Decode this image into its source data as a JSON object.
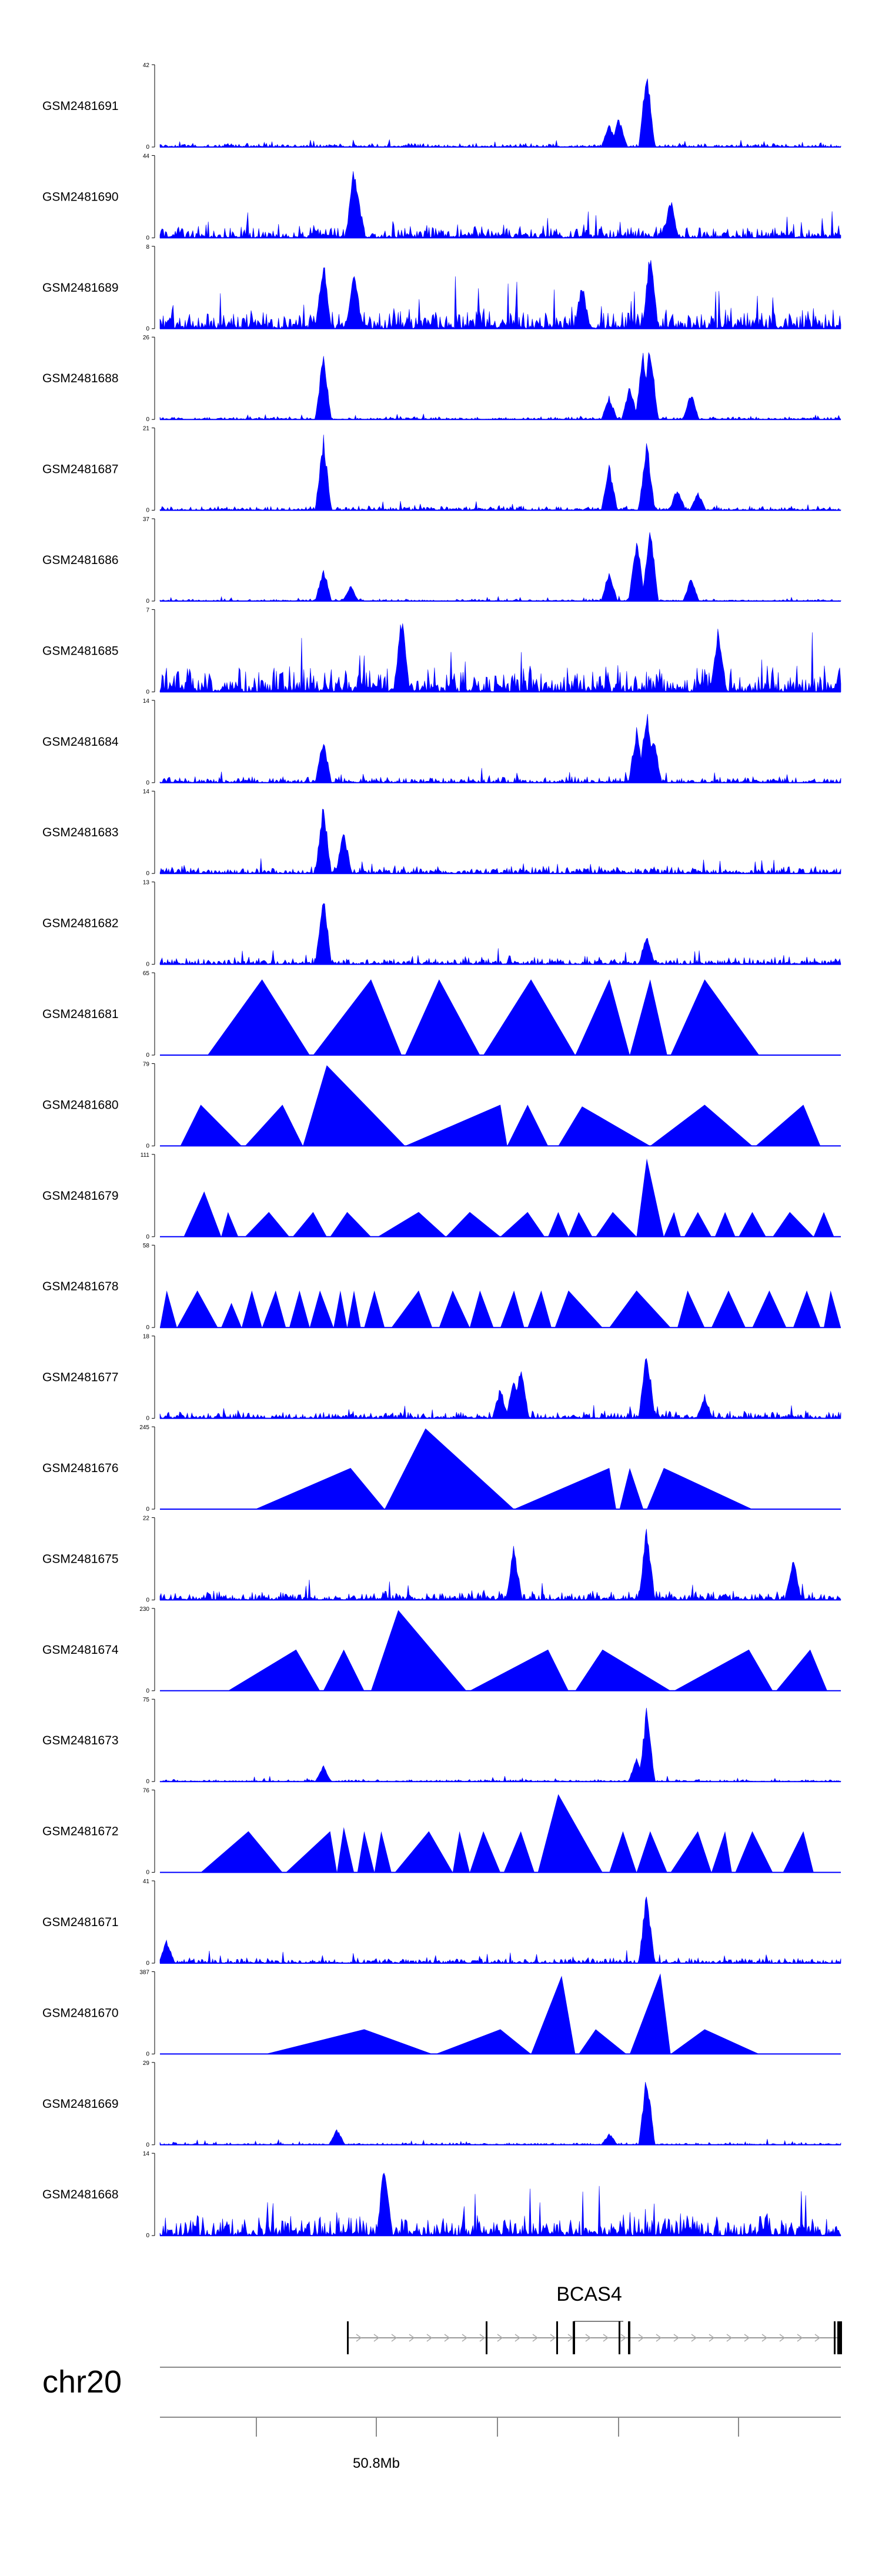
{
  "chart_data": {
    "type": "area",
    "title": "",
    "xlabel": "",
    "ylabel": "",
    "chromosome": "chr20",
    "ruler": {
      "labels": [
        "50.8Mb"
      ]
    },
    "gene": {
      "name": "BCAS4"
    },
    "tracks": [
      {
        "name": "GSM2481691",
        "ymax": 42,
        "ymin": 0,
        "kind": "dense",
        "noise": 0.05,
        "peaks": [
          [
            0.66,
            0.3
          ],
          [
            0.674,
            0.4
          ],
          [
            0.715,
            1.0
          ]
        ]
      },
      {
        "name": "GSM2481690",
        "ymax": 44,
        "ymin": 0,
        "kind": "dense",
        "noise": 0.18,
        "peaks": [
          [
            0.285,
            0.95
          ],
          [
            0.29,
            0.6
          ],
          [
            0.75,
            0.5
          ]
        ]
      },
      {
        "name": "GSM2481689",
        "ymax": 8,
        "ymin": 0,
        "kind": "dense",
        "noise": 0.28,
        "peaks": [
          [
            0.24,
            0.9
          ],
          [
            0.285,
            0.85
          ],
          [
            0.72,
            1.0
          ],
          [
            0.62,
            0.6
          ]
        ]
      },
      {
        "name": "GSM2481688",
        "ymax": 26,
        "ymin": 0,
        "kind": "dense",
        "noise": 0.04,
        "peaks": [
          [
            0.24,
            0.85
          ],
          [
            0.66,
            0.3
          ],
          [
            0.69,
            0.45
          ],
          [
            0.71,
            0.9
          ],
          [
            0.72,
            1.0
          ],
          [
            0.78,
            0.35
          ]
        ]
      },
      {
        "name": "GSM2481687",
        "ymax": 21,
        "ymin": 0,
        "kind": "dense",
        "noise": 0.06,
        "peaks": [
          [
            0.24,
            0.95
          ],
          [
            0.66,
            0.6
          ],
          [
            0.715,
            0.9
          ],
          [
            0.76,
            0.3
          ],
          [
            0.79,
            0.25
          ]
        ]
      },
      {
        "name": "GSM2481686",
        "ymax": 37,
        "ymin": 0,
        "kind": "dense",
        "noise": 0.03,
        "peaks": [
          [
            0.24,
            0.45
          ],
          [
            0.28,
            0.2
          ],
          [
            0.66,
            0.4
          ],
          [
            0.7,
            0.85
          ],
          [
            0.72,
            1.0
          ],
          [
            0.78,
            0.3
          ]
        ]
      },
      {
        "name": "GSM2481685",
        "ymax": 7,
        "ymin": 0,
        "kind": "dense",
        "noise": 0.35,
        "peaks": [
          [
            0.355,
            1.0
          ],
          [
            0.82,
            0.85
          ]
        ]
      },
      {
        "name": "GSM2481684",
        "ymax": 14,
        "ymin": 0,
        "kind": "dense",
        "noise": 0.08,
        "peaks": [
          [
            0.24,
            0.6
          ],
          [
            0.7,
            0.7
          ],
          [
            0.715,
            0.95
          ],
          [
            0.725,
            0.6
          ]
        ]
      },
      {
        "name": "GSM2481683",
        "ymax": 14,
        "ymin": 0,
        "kind": "dense",
        "noise": 0.1,
        "peaks": [
          [
            0.24,
            0.9
          ],
          [
            0.27,
            0.55
          ]
        ]
      },
      {
        "name": "GSM2481682",
        "ymax": 13,
        "ymin": 0,
        "kind": "dense",
        "noise": 0.1,
        "peaks": [
          [
            0.24,
            0.95
          ],
          [
            0.715,
            0.4
          ]
        ]
      },
      {
        "name": "GSM2481681",
        "ymax": 65,
        "ymin": 0,
        "kind": "tri",
        "segments": [
          [
            0.07,
            0.15,
            0.22,
            0.92
          ],
          [
            0.225,
            0.31,
            0.355,
            0.92
          ],
          [
            0.36,
            0.41,
            0.47,
            0.92
          ],
          [
            0.475,
            0.545,
            0.61,
            0.92
          ],
          [
            0.61,
            0.66,
            0.69,
            0.92
          ],
          [
            0.69,
            0.72,
            0.745,
            0.92
          ],
          [
            0.75,
            0.8,
            0.88,
            0.92
          ]
        ]
      },
      {
        "name": "GSM2481680",
        "ymax": 79,
        "ymin": 0,
        "kind": "tri",
        "segments": [
          [
            0.03,
            0.06,
            0.12,
            0.5
          ],
          [
            0.125,
            0.18,
            0.21,
            0.5
          ],
          [
            0.21,
            0.245,
            0.36,
            0.98
          ],
          [
            0.36,
            0.5,
            0.51,
            0.5
          ],
          [
            0.51,
            0.54,
            0.57,
            0.5
          ],
          [
            0.585,
            0.62,
            0.72,
            0.48
          ],
          [
            0.72,
            0.8,
            0.87,
            0.5
          ],
          [
            0.875,
            0.945,
            0.97,
            0.5
          ]
        ]
      },
      {
        "name": "GSM2481679",
        "ymax": 111,
        "ymin": 0,
        "kind": "tri",
        "segments": [
          [
            0.035,
            0.065,
            0.09,
            0.55
          ],
          [
            0.09,
            0.1,
            0.115,
            0.3
          ],
          [
            0.125,
            0.16,
            0.19,
            0.3
          ],
          [
            0.195,
            0.225,
            0.245,
            0.3
          ],
          [
            0.25,
            0.275,
            0.31,
            0.3
          ],
          [
            0.32,
            0.38,
            0.42,
            0.3
          ],
          [
            0.42,
            0.455,
            0.5,
            0.3
          ],
          [
            0.5,
            0.54,
            0.565,
            0.3
          ],
          [
            0.57,
            0.585,
            0.6,
            0.3
          ],
          [
            0.6,
            0.615,
            0.635,
            0.3
          ],
          [
            0.64,
            0.665,
            0.7,
            0.3
          ],
          [
            0.7,
            0.715,
            0.74,
            0.95
          ],
          [
            0.74,
            0.755,
            0.765,
            0.3
          ],
          [
            0.77,
            0.79,
            0.81,
            0.3
          ],
          [
            0.815,
            0.83,
            0.845,
            0.3
          ],
          [
            0.85,
            0.87,
            0.89,
            0.3
          ],
          [
            0.9,
            0.925,
            0.96,
            0.3
          ],
          [
            0.96,
            0.975,
            0.99,
            0.3
          ]
        ]
      },
      {
        "name": "GSM2481678",
        "ymax": 58,
        "ymin": 0,
        "kind": "tri",
        "segments": [
          [
            0.0,
            0.01,
            0.025,
            0.45
          ],
          [
            0.025,
            0.055,
            0.085,
            0.45
          ],
          [
            0.09,
            0.105,
            0.12,
            0.3
          ],
          [
            0.12,
            0.135,
            0.15,
            0.45
          ],
          [
            0.15,
            0.17,
            0.185,
            0.45
          ],
          [
            0.19,
            0.205,
            0.22,
            0.45
          ],
          [
            0.22,
            0.235,
            0.255,
            0.45
          ],
          [
            0.255,
            0.265,
            0.275,
            0.45
          ],
          [
            0.275,
            0.285,
            0.295,
            0.45
          ],
          [
            0.3,
            0.315,
            0.33,
            0.45
          ],
          [
            0.34,
            0.38,
            0.4,
            0.45
          ],
          [
            0.41,
            0.43,
            0.455,
            0.45
          ],
          [
            0.455,
            0.47,
            0.49,
            0.45
          ],
          [
            0.5,
            0.52,
            0.535,
            0.45
          ],
          [
            0.54,
            0.56,
            0.575,
            0.45
          ],
          [
            0.58,
            0.6,
            0.65,
            0.45
          ],
          [
            0.66,
            0.7,
            0.75,
            0.45
          ],
          [
            0.76,
            0.775,
            0.8,
            0.45
          ],
          [
            0.81,
            0.835,
            0.86,
            0.45
          ],
          [
            0.87,
            0.895,
            0.92,
            0.45
          ],
          [
            0.93,
            0.95,
            0.97,
            0.45
          ],
          [
            0.975,
            0.985,
            1.0,
            0.45
          ]
        ]
      },
      {
        "name": "GSM2481677",
        "ymax": 18,
        "ymin": 0,
        "kind": "dense",
        "noise": 0.1,
        "peaks": [
          [
            0.5,
            0.4
          ],
          [
            0.52,
            0.55
          ],
          [
            0.53,
            0.7
          ],
          [
            0.715,
            0.95
          ],
          [
            0.8,
            0.3
          ]
        ]
      },
      {
        "name": "GSM2481676",
        "ymax": 245,
        "ymin": 0,
        "kind": "tri",
        "segments": [
          [
            0.14,
            0.28,
            0.33,
            0.5
          ],
          [
            0.33,
            0.39,
            0.52,
            0.98
          ],
          [
            0.52,
            0.66,
            0.67,
            0.5
          ],
          [
            0.675,
            0.69,
            0.71,
            0.5
          ],
          [
            0.715,
            0.74,
            0.87,
            0.5
          ]
        ]
      },
      {
        "name": "GSM2481675",
        "ymax": 22,
        "ymin": 0,
        "kind": "dense",
        "noise": 0.12,
        "peaks": [
          [
            0.52,
            0.7
          ],
          [
            0.715,
            0.95
          ],
          [
            0.93,
            0.6
          ]
        ]
      },
      {
        "name": "GSM2481674",
        "ymax": 230,
        "ymin": 0,
        "kind": "tri",
        "segments": [
          [
            0.1,
            0.2,
            0.235,
            0.5
          ],
          [
            0.24,
            0.27,
            0.3,
            0.5
          ],
          [
            0.31,
            0.35,
            0.45,
            0.98
          ],
          [
            0.455,
            0.57,
            0.6,
            0.5
          ],
          [
            0.61,
            0.65,
            0.75,
            0.5
          ],
          [
            0.755,
            0.865,
            0.9,
            0.5
          ],
          [
            0.905,
            0.955,
            0.98,
            0.5
          ]
        ]
      },
      {
        "name": "GSM2481673",
        "ymax": 75,
        "ymin": 0,
        "kind": "dense",
        "noise": 0.03,
        "peaks": [
          [
            0.24,
            0.2
          ],
          [
            0.715,
            0.95
          ],
          [
            0.7,
            0.3
          ]
        ]
      },
      {
        "name": "GSM2481672",
        "ymax": 76,
        "ymin": 0,
        "kind": "tri",
        "segments": [
          [
            0.06,
            0.13,
            0.18,
            0.5
          ],
          [
            0.185,
            0.25,
            0.26,
            0.5
          ],
          [
            0.26,
            0.27,
            0.285,
            0.55
          ],
          [
            0.29,
            0.3,
            0.315,
            0.5
          ],
          [
            0.315,
            0.325,
            0.34,
            0.5
          ],
          [
            0.345,
            0.395,
            0.43,
            0.5
          ],
          [
            0.43,
            0.44,
            0.455,
            0.5
          ],
          [
            0.455,
            0.475,
            0.5,
            0.5
          ],
          [
            0.505,
            0.53,
            0.55,
            0.5
          ],
          [
            0.555,
            0.585,
            0.65,
            0.95
          ],
          [
            0.66,
            0.68,
            0.7,
            0.5
          ],
          [
            0.7,
            0.72,
            0.745,
            0.5
          ],
          [
            0.75,
            0.79,
            0.81,
            0.5
          ],
          [
            0.81,
            0.83,
            0.84,
            0.5
          ],
          [
            0.845,
            0.87,
            0.9,
            0.5
          ],
          [
            0.915,
            0.945,
            0.96,
            0.5
          ]
        ]
      },
      {
        "name": "GSM2481671",
        "ymax": 41,
        "ymin": 0,
        "kind": "dense",
        "noise": 0.07,
        "peaks": [
          [
            0.715,
            0.95
          ],
          [
            0.01,
            0.3
          ]
        ]
      },
      {
        "name": "GSM2481670",
        "ymax": 387,
        "ymin": 0,
        "kind": "tri",
        "segments": [
          [
            0.155,
            0.3,
            0.4,
            0.3
          ],
          [
            0.405,
            0.5,
            0.545,
            0.3
          ],
          [
            0.545,
            0.59,
            0.61,
            0.95
          ],
          [
            0.615,
            0.64,
            0.685,
            0.3
          ],
          [
            0.69,
            0.735,
            0.75,
            0.98
          ],
          [
            0.75,
            0.8,
            0.88,
            0.3
          ]
        ]
      },
      {
        "name": "GSM2481669",
        "ymax": 29,
        "ymin": 0,
        "kind": "dense",
        "noise": 0.03,
        "peaks": [
          [
            0.715,
            0.95
          ],
          [
            0.66,
            0.15
          ],
          [
            0.26,
            0.2
          ]
        ]
      },
      {
        "name": "GSM2481668",
        "ymax": 14,
        "ymin": 0,
        "kind": "dense",
        "noise": 0.3,
        "peaks": [
          [
            0.33,
            1.0
          ]
        ]
      }
    ]
  }
}
